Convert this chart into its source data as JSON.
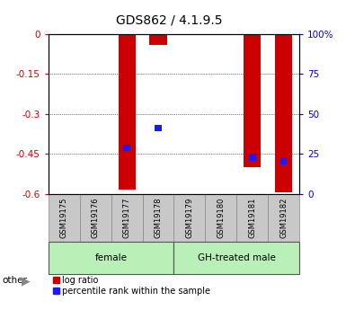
{
  "title": "GDS862 / 4.1.9.5",
  "samples": [
    "GSM19175",
    "GSM19176",
    "GSM19177",
    "GSM19178",
    "GSM19179",
    "GSM19180",
    "GSM19181",
    "GSM19182"
  ],
  "log_ratio": [
    0,
    0,
    -0.585,
    -0.04,
    0,
    0,
    -0.5,
    -0.595
  ],
  "blue_left_val": [
    null,
    null,
    -0.44,
    -0.365,
    null,
    null,
    -0.475,
    -0.49
  ],
  "blue_height": [
    null,
    null,
    0.025,
    0.025,
    null,
    null,
    0.025,
    0.025
  ],
  "groups": [
    {
      "label": "female",
      "xstart": 0,
      "xend": 3
    },
    {
      "label": "GH-treated male",
      "xstart": 4,
      "xend": 7
    }
  ],
  "group_color": "#b8f0b8",
  "sample_box_color": "#c8c8c8",
  "ylim_left": [
    -0.6,
    0.0
  ],
  "ylim_right": [
    0,
    100
  ],
  "yticks_left": [
    0,
    -0.15,
    -0.3,
    -0.45,
    -0.6
  ],
  "yticks_right": [
    0,
    25,
    50,
    75,
    100
  ],
  "bar_color_red": "#cc0000",
  "bar_color_blue": "#1a1aff",
  "color_left_axis": "#cc0000",
  "color_right_axis": "#0000cc",
  "bar_width": 0.55,
  "blue_bar_width": 0.22,
  "bg_color": "#ffffff",
  "other_label": "other",
  "legend_log_ratio": "log ratio",
  "legend_percentile": "percentile rank within the sample",
  "title_fontsize": 10,
  "axis_fontsize": 7.5,
  "sample_fontsize": 6.0,
  "group_fontsize": 7.5,
  "legend_fontsize": 7
}
